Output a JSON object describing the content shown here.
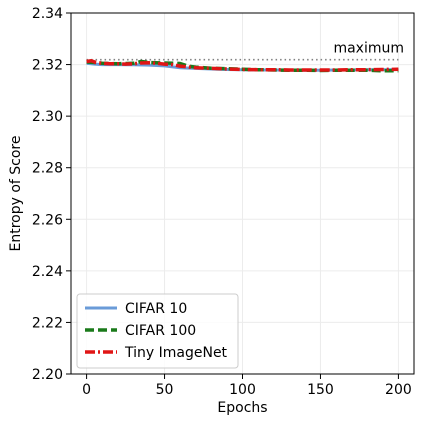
{
  "chart_data": {
    "type": "line",
    "title": "",
    "xlabel": "Epochs",
    "ylabel": "Entropy of Score",
    "xlim": [
      -10,
      210
    ],
    "ylim": [
      2.2,
      2.34
    ],
    "xticks": [
      0,
      50,
      100,
      150,
      200
    ],
    "yticks": [
      2.2,
      2.22,
      2.24,
      2.26,
      2.28,
      2.3,
      2.32,
      2.34
    ],
    "grid": true,
    "legend_position": "bottom-left",
    "reference_line": {
      "label": "maximum",
      "y": 2.3219,
      "color": "#808080"
    },
    "series": [
      {
        "name": "CIFAR 10",
        "color": "#6a9bd8",
        "style": "solid",
        "x": [
          0,
          5,
          10,
          20,
          30,
          40,
          50,
          60,
          70,
          80,
          90,
          100,
          110,
          120,
          130,
          140,
          150,
          160,
          170,
          180,
          190,
          200
        ],
        "y": [
          2.3205,
          2.3202,
          2.32,
          2.32,
          2.3199,
          2.3198,
          2.3195,
          2.3188,
          2.3185,
          2.3183,
          2.3181,
          2.318,
          2.3179,
          2.3179,
          2.3178,
          2.3178,
          2.3178,
          2.3179,
          2.3179,
          2.318,
          2.318,
          2.3181
        ]
      },
      {
        "name": "CIFAR 100",
        "color": "#1a7a1a",
        "style": "dashed",
        "x": [
          0,
          5,
          10,
          20,
          30,
          35,
          40,
          50,
          60,
          65,
          70,
          80,
          90,
          100,
          110,
          120,
          130,
          140,
          150,
          160,
          170,
          180,
          190,
          200
        ],
        "y": [
          2.321,
          2.3208,
          2.3205,
          2.3203,
          2.3205,
          2.3212,
          2.3208,
          2.3206,
          2.3204,
          2.3194,
          2.319,
          2.3186,
          2.3184,
          2.3182,
          2.318,
          2.3179,
          2.3178,
          2.3178,
          2.3177,
          2.3178,
          2.3178,
          2.3178,
          2.3176,
          2.3176
        ]
      },
      {
        "name": "Tiny ImageNet",
        "color": "#e01515",
        "style": "dashdot",
        "x": [
          0,
          3,
          6,
          10,
          15,
          20,
          25,
          30,
          35,
          40,
          45,
          50,
          55,
          60,
          70,
          80,
          90,
          100,
          110,
          120,
          130,
          140,
          150,
          160,
          170,
          180,
          190,
          200
        ],
        "y": [
          2.3212,
          2.3215,
          2.3208,
          2.3205,
          2.3203,
          2.3203,
          2.3202,
          2.3203,
          2.3206,
          2.3207,
          2.3205,
          2.3202,
          2.32,
          2.3194,
          2.3188,
          2.3185,
          2.3183,
          2.3181,
          2.318,
          2.318,
          2.3179,
          2.3179,
          2.3179,
          2.3179,
          2.318,
          2.318,
          2.3181,
          2.3182
        ]
      }
    ]
  }
}
